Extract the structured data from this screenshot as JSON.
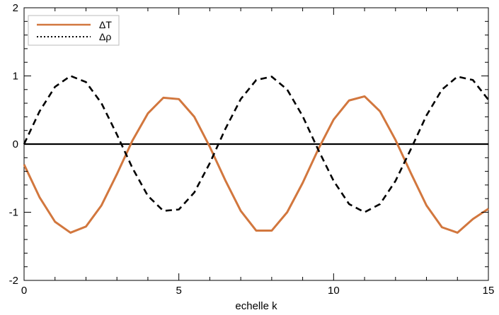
{
  "chart_data": {
    "type": "line",
    "title": "",
    "xlabel": "echelle k",
    "ylabel": "",
    "xlim": [
      0,
      15
    ],
    "ylim": [
      -2,
      2
    ],
    "x_ticks": [
      "0",
      "5",
      "10",
      "15"
    ],
    "y_ticks": [
      "2",
      "1",
      "0",
      "-1",
      "-2"
    ],
    "grid": false,
    "legend": "top-left",
    "x": [
      0,
      0.5,
      1,
      1.5,
      2,
      2.5,
      3,
      3.5,
      4,
      4.5,
      5,
      5.5,
      6,
      6.5,
      7,
      7.5,
      8,
      8.5,
      9,
      9.5,
      10,
      10.5,
      11,
      11.5,
      12,
      12.5,
      13,
      13.5,
      14,
      14.5,
      15
    ],
    "series": [
      {
        "name": "ΔT",
        "color": "#d2773e",
        "style": "solid",
        "values": [
          -0.3,
          -0.78,
          -1.14,
          -1.3,
          -1.21,
          -0.9,
          -0.44,
          0.05,
          0.45,
          0.68,
          0.66,
          0.4,
          -0.04,
          -0.53,
          -0.98,
          -1.27,
          -1.27,
          -1.0,
          -0.57,
          -0.08,
          0.36,
          0.64,
          0.7,
          0.48,
          0.06,
          -0.43,
          -0.9,
          -1.22,
          -1.3,
          -1.1,
          -0.95
        ]
      },
      {
        "name": "Δρ",
        "color": "#000000",
        "style": "dashed",
        "values": [
          0.0,
          0.48,
          0.84,
          1.0,
          0.91,
          0.6,
          0.14,
          -0.35,
          -0.76,
          -0.98,
          -0.96,
          -0.71,
          -0.28,
          0.22,
          0.66,
          0.94,
          0.99,
          0.8,
          0.41,
          -0.08,
          -0.54,
          -0.88,
          -1.0,
          -0.88,
          -0.54,
          -0.07,
          0.42,
          0.8,
          0.99,
          0.94,
          0.65
        ]
      }
    ],
    "reference_line": {
      "y": 0,
      "color": "#000000"
    }
  }
}
